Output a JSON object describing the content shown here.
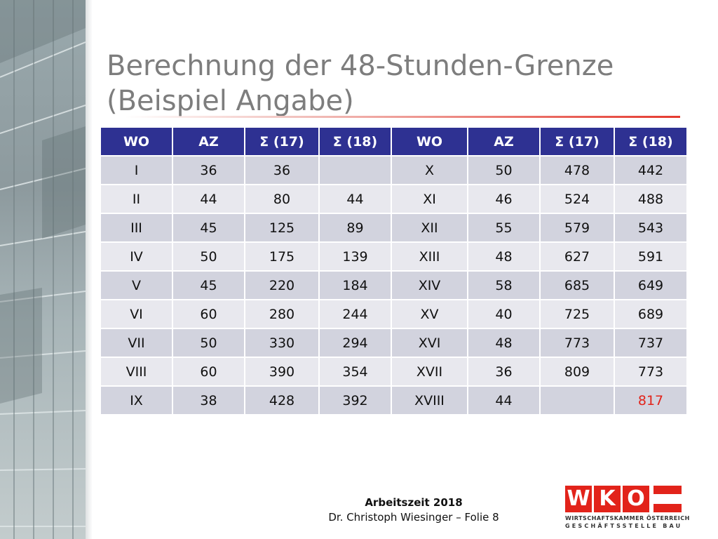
{
  "slide": {
    "title_line1": "Berechnung der 48-Stunden-Grenze",
    "title_line2": "(Beispiel Angabe)"
  },
  "table": {
    "headers": [
      "WO",
      "AZ",
      "Σ (17)",
      "Σ (18)",
      "WO",
      "AZ",
      "Σ (17)",
      "Σ (18)"
    ],
    "rows": [
      [
        "I",
        "36",
        "36",
        "",
        "X",
        "50",
        "478",
        "442"
      ],
      [
        "II",
        "44",
        "80",
        "44",
        "XI",
        "46",
        "524",
        "488"
      ],
      [
        "III",
        "45",
        "125",
        "89",
        "XII",
        "55",
        "579",
        "543"
      ],
      [
        "IV",
        "50",
        "175",
        "139",
        "XIII",
        "48",
        "627",
        "591"
      ],
      [
        "V",
        "45",
        "220",
        "184",
        "XIV",
        "58",
        "685",
        "649"
      ],
      [
        "VI",
        "60",
        "280",
        "244",
        "XV",
        "40",
        "725",
        "689"
      ],
      [
        "VII",
        "50",
        "330",
        "294",
        "XVI",
        "48",
        "773",
        "737"
      ],
      [
        "VIII",
        "60",
        "390",
        "354",
        "XVII",
        "36",
        "809",
        "773"
      ],
      [
        "IX",
        "38",
        "428",
        "392",
        "XVIII",
        "44",
        "",
        "817"
      ]
    ],
    "highlight_color": "#e2231a",
    "header_color": "#2e3192"
  },
  "footer": {
    "line1": "Arbeitszeit 2018",
    "line2": "Dr. Christoph Wiesinger – Folie 8"
  },
  "logo": {
    "letters": [
      "W",
      "K",
      "O"
    ],
    "line1": "WIRTSCHAFTSKAMMER ÖSTERREICH",
    "line2": "GESCHÄFTSSTELLE BAU",
    "color": "#e2231a"
  }
}
